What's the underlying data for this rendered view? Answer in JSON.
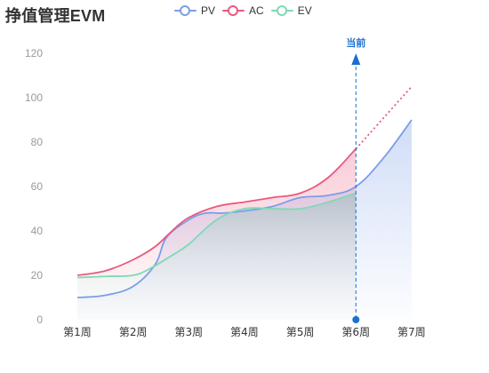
{
  "colors": {
    "pv": "#7b9ee8",
    "ac": "#e9597d",
    "ev": "#7fd9b6",
    "axis_text": "#999999",
    "title": "#333333",
    "current_marker": "#1a6fd1"
  },
  "chart_data": {
    "type": "line",
    "title": "挣值管理EVM",
    "xlabel": "",
    "ylabel": "",
    "categories": [
      "第1周",
      "第2周",
      "第3周",
      "第4周",
      "第5周",
      "第6周",
      "第7周"
    ],
    "ylim": [
      0,
      120
    ],
    "yticks": [
      0,
      20,
      40,
      60,
      80,
      100,
      120
    ],
    "grid": false,
    "legend_position": "top-center",
    "current_marker": {
      "label": "当前",
      "category": "第6周"
    },
    "series": [
      {
        "name": "PV",
        "color": "#7b9ee8",
        "fill": "area",
        "x": [
          1,
          1.5,
          2,
          2.4,
          2.6,
          3,
          3.3,
          3.6,
          4,
          4.5,
          5,
          5.5,
          6,
          6.5,
          7
        ],
        "values": [
          10,
          11,
          15,
          25,
          37,
          45,
          48,
          48,
          49,
          51,
          55,
          56,
          60,
          73,
          90
        ]
      },
      {
        "name": "AC",
        "color": "#e9597d",
        "fill": "gap-to-EV",
        "x": [
          1,
          1.5,
          2,
          2.4,
          2.7,
          3,
          3.5,
          4,
          4.5,
          5,
          5.5,
          6
        ],
        "values": [
          20,
          22,
          27,
          33,
          40,
          46,
          51,
          53,
          55,
          57,
          64,
          77
        ],
        "forecast": {
          "x": [
            6,
            6.5,
            7
          ],
          "values": [
            77,
            91,
            105
          ]
        }
      },
      {
        "name": "EV",
        "color": "#7fd9b6",
        "fill": "area",
        "x": [
          1,
          1.5,
          2,
          2.3,
          2.7,
          3,
          3.5,
          4,
          4.5,
          5,
          5.5,
          6
        ],
        "values": [
          19,
          19.5,
          20,
          23,
          29,
          34,
          45,
          50,
          50,
          50,
          53,
          57
        ]
      }
    ]
  }
}
